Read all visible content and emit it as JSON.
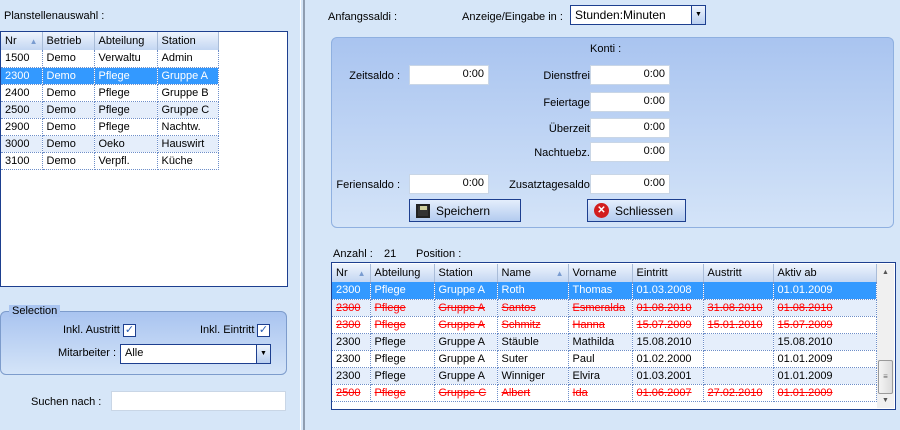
{
  "left": {
    "title": "Planstellenauswahl :",
    "columns": [
      "Nr",
      "Betrieb",
      "Abteilung",
      "Station"
    ],
    "rows": [
      [
        "1500",
        "Demo",
        "Verwaltu",
        "Admin"
      ],
      [
        "2300",
        "Demo",
        "Pflege",
        "Gruppe A"
      ],
      [
        "2400",
        "Demo",
        "Pflege",
        "Gruppe B"
      ],
      [
        "2500",
        "Demo",
        "Pflege",
        "Gruppe C"
      ],
      [
        "2900",
        "Demo",
        "Pflege",
        "Nachtw."
      ],
      [
        "3000",
        "Demo",
        "Oeko",
        "Hauswirt"
      ],
      [
        "3100",
        "Demo",
        "Verpfl.",
        "Küche"
      ]
    ],
    "selected_row": 1,
    "selection": {
      "legend": "Selection",
      "austritt_label": "Inkl. Austritt",
      "austritt_checked": true,
      "eintritt_label": "Inkl. Eintritt",
      "eintritt_checked": true,
      "mitarbeiter_label": "Mitarbeiter :",
      "mitarbeiter_value": "Alle"
    },
    "search": {
      "label": "Suchen nach :",
      "value": ""
    }
  },
  "right": {
    "anfangssaldi_label": "Anfangssaldi :",
    "anzeige_label": "Anzeige/Eingabe in :",
    "anzeige_value": "Stunden:Minuten",
    "konti_label": "Konti :",
    "fields": {
      "zeitsaldo": {
        "label": "Zeitsaldo :",
        "value": "0:00"
      },
      "feriensaldo": {
        "label": "Feriensaldo :",
        "value": "0:00"
      },
      "dienstfrei": {
        "label": "Dienstfrei :",
        "value": "0:00"
      },
      "feiertage": {
        "label": "Feiertage :",
        "value": "0:00"
      },
      "ueberzeit": {
        "label": "Überzeit :",
        "value": "0:00"
      },
      "nachtuebz": {
        "label": "Nachtuebz. :",
        "value": "0:00"
      },
      "zusatztagesaldo": {
        "label": "Zusatztagesaldo :",
        "value": "0:00"
      }
    },
    "save_label": "Speichern",
    "close_label": "Schliessen",
    "anzahl_label": "Anzahl :",
    "anzahl_value": "21",
    "position_label": "Position :",
    "columns": [
      "Nr",
      "Abteilung",
      "Station",
      "Name",
      "Vorname",
      "Eintritt",
      "Austritt",
      "Aktiv ab"
    ],
    "rows": [
      {
        "cells": [
          "2300",
          "Pflege",
          "Gruppe A",
          "Roth",
          "Thomas",
          "01.03.2008",
          "",
          "01.01.2009"
        ],
        "state": "selected"
      },
      {
        "cells": [
          "2300",
          "Pflege",
          "Gruppe A",
          "Santos",
          "Esmeralda",
          "01.08.2010",
          "31.08.2010",
          "01.08.2010"
        ],
        "state": "exited"
      },
      {
        "cells": [
          "2300",
          "Pflege",
          "Gruppe A",
          "Schmitz",
          "Hanna",
          "15.07.2009",
          "15.01.2010",
          "15.07.2009"
        ],
        "state": "exited"
      },
      {
        "cells": [
          "2300",
          "Pflege",
          "Gruppe A",
          "Stäuble",
          "Mathilda",
          "15.08.2010",
          "",
          "15.08.2010"
        ],
        "state": "normal"
      },
      {
        "cells": [
          "2300",
          "Pflege",
          "Gruppe A",
          "Suter",
          "Paul",
          "01.02.2000",
          "",
          "01.01.2009"
        ],
        "state": "normal"
      },
      {
        "cells": [
          "2300",
          "Pflege",
          "Gruppe A",
          "Winniger",
          "Elvira",
          "01.03.2001",
          "",
          "01.01.2009"
        ],
        "state": "normal"
      },
      {
        "cells": [
          "2500",
          "Pflege",
          "Gruppe C",
          "Albert",
          "Ida",
          "01.06.2007",
          "27.02.2010",
          "01.01.2009"
        ],
        "state": "exited"
      }
    ]
  },
  "colors": {
    "selection": "#3399ff",
    "exited": "#ff0000",
    "background": "#d6e6f8"
  }
}
